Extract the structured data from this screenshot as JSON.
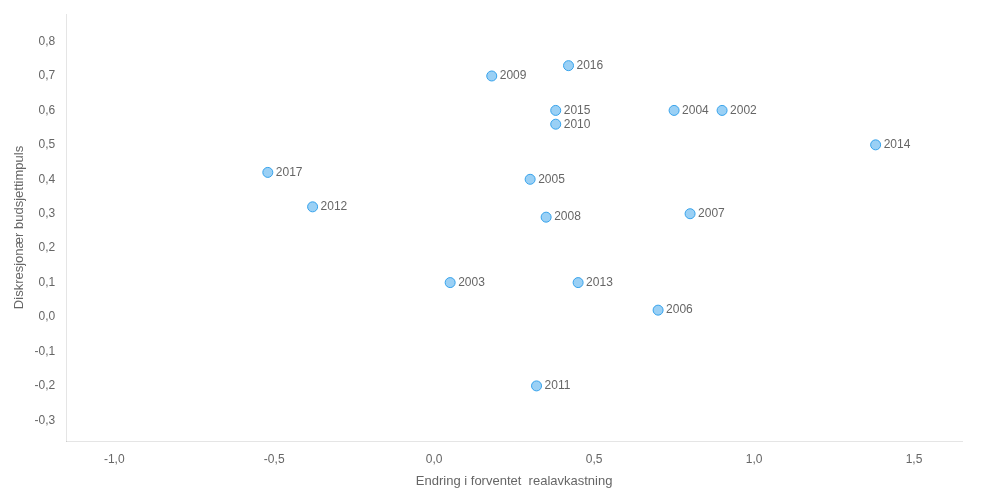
{
  "chart_data": {
    "type": "scatter",
    "xlabel": "Endring i forventet  realavkastning",
    "ylabel": "Diskresjonær budsjettimpuls",
    "x": [
      0.9,
      0.05,
      0.75,
      0.3,
      0.7,
      0.8,
      0.35,
      0.18,
      0.38,
      0.32,
      -0.38,
      0.45,
      1.38,
      0.38,
      0.42,
      -0.52
    ],
    "values": [
      0.6,
      0.1,
      0.6,
      0.4,
      0.02,
      0.3,
      0.29,
      0.7,
      0.56,
      -0.2,
      0.32,
      0.1,
      0.5,
      0.6,
      0.73,
      0.42
    ],
    "point_labels": [
      "2002",
      "2003",
      "2004",
      "2005",
      "2006",
      "2007",
      "2008",
      "2009",
      "2010",
      "2011",
      "2012",
      "2013",
      "2014",
      "2015",
      "2016",
      "2017"
    ],
    "xlim": [
      -1.15,
      1.65
    ],
    "ylim": [
      -0.36,
      0.88
    ],
    "xticks": [
      {
        "value": -1.0,
        "label": "-1,0"
      },
      {
        "value": -0.5,
        "label": "-0,5"
      },
      {
        "value": 0.0,
        "label": "0,0"
      },
      {
        "value": 0.5,
        "label": "0,5"
      },
      {
        "value": 1.0,
        "label": "1,0"
      },
      {
        "value": 1.5,
        "label": "1,5"
      }
    ],
    "yticks": [
      {
        "value": -0.3,
        "label": "-0,3"
      },
      {
        "value": -0.2,
        "label": "-0,2"
      },
      {
        "value": -0.1,
        "label": "-0,1"
      },
      {
        "value": 0.0,
        "label": "0,0"
      },
      {
        "value": 0.1,
        "label": "0,1"
      },
      {
        "value": 0.2,
        "label": "0,2"
      },
      {
        "value": 0.3,
        "label": "0,3"
      },
      {
        "value": 0.4,
        "label": "0,4"
      },
      {
        "value": 0.5,
        "label": "0,5"
      },
      {
        "value": 0.6,
        "label": "0,6"
      },
      {
        "value": 0.7,
        "label": "0,7"
      },
      {
        "value": 0.8,
        "label": "0,8"
      }
    ],
    "grid": false
  }
}
